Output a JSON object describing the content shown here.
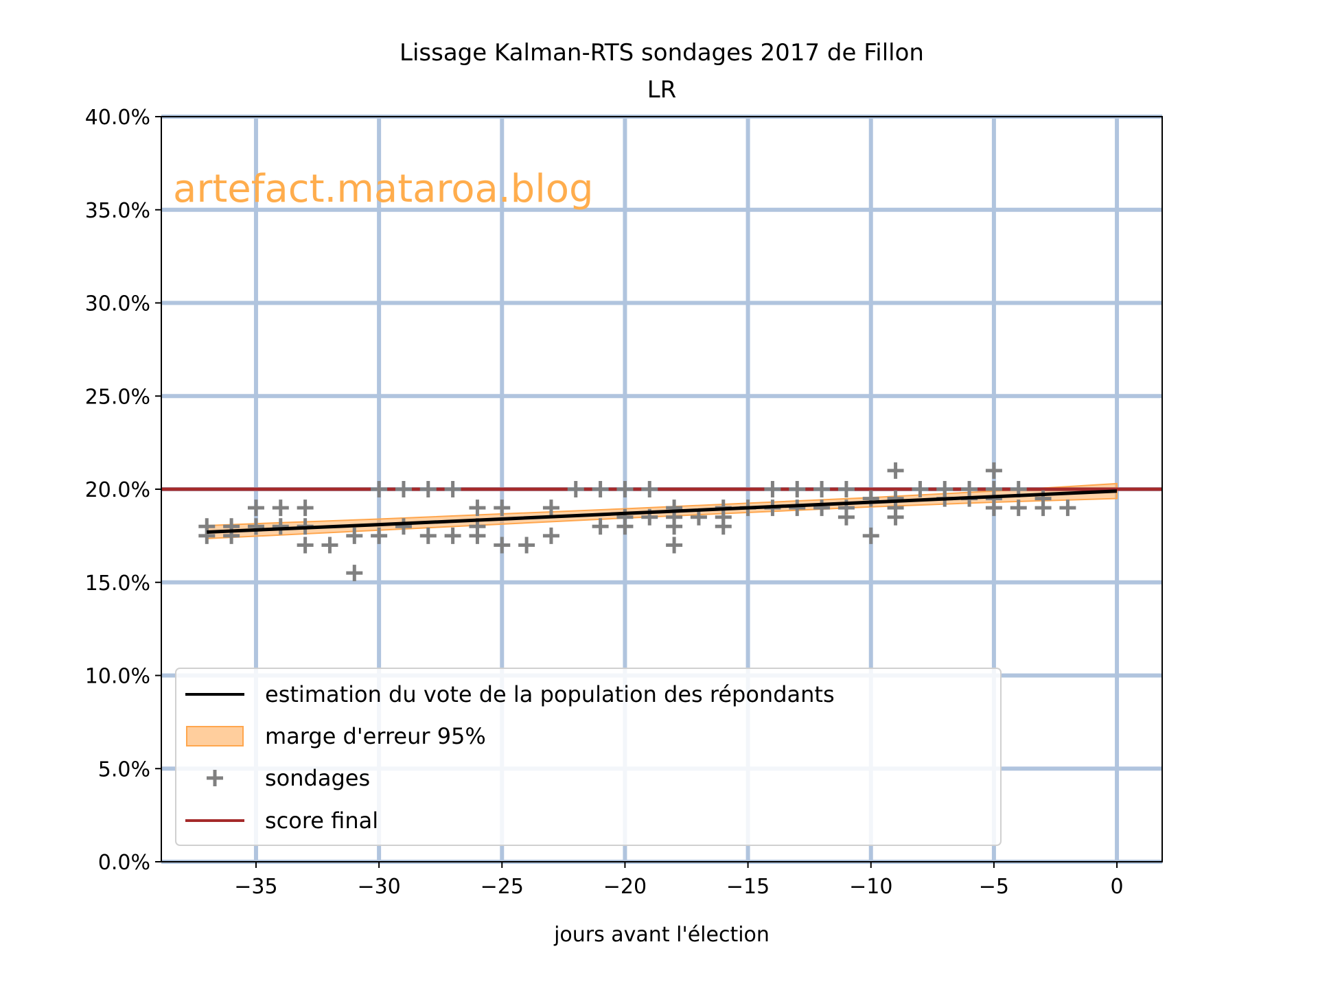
{
  "chart_data": {
    "type": "scatter",
    "title": "Lissage Kalman-RTS sondages 2017 de Fillon",
    "subtitle": "LR",
    "xlabel": "jours avant l'élection",
    "ylabel": "",
    "xlim": [
      -38.85,
      1.84
    ],
    "ylim": [
      0,
      40
    ],
    "xticks": [
      -35,
      -30,
      -25,
      -20,
      -15,
      -10,
      -5,
      0
    ],
    "xtick_labels": [
      "−35",
      "−30",
      "−25",
      "−20",
      "−15",
      "−10",
      "−5",
      "0"
    ],
    "yticks": [
      0,
      5,
      10,
      15,
      20,
      25,
      30,
      35,
      40
    ],
    "ytick_labels": [
      "0.0%",
      "5.0%",
      "10.0%",
      "15.0%",
      "20.0%",
      "25.0%",
      "30.0%",
      "35.0%",
      "40.0%"
    ],
    "grid": true,
    "grid_color": "#b0c4de",
    "watermark": "artefact.mataroa.blog",
    "watermark_color": "#ffad4d",
    "legend_position": "lower-left",
    "legend": [
      {
        "label": "estimation du vote de la population des répondants",
        "kind": "line",
        "color": "#000000"
      },
      {
        "label": "marge d'erreur 95%",
        "kind": "band",
        "color": "#ffa64d"
      },
      {
        "label": "sondages",
        "kind": "marker",
        "color": "#808080"
      },
      {
        "label": "score final",
        "kind": "line",
        "color": "#a52a2a"
      }
    ],
    "series": [
      {
        "name": "estimation du vote de la population des répondants",
        "type": "line",
        "x": [
          -37,
          -30,
          -20,
          -10,
          -5,
          0
        ],
        "y": [
          17.7,
          18.1,
          18.7,
          19.3,
          19.6,
          19.9
        ]
      },
      {
        "name": "marge d'erreur 95%",
        "type": "band",
        "x": [
          -37,
          -30,
          -20,
          -10,
          -5,
          0
        ],
        "lower": [
          17.35,
          17.8,
          18.45,
          19.05,
          19.3,
          19.5
        ],
        "upper": [
          18.05,
          18.4,
          18.95,
          19.55,
          19.9,
          20.3
        ]
      },
      {
        "name": "sondages",
        "type": "scatter",
        "points": [
          [
            -37,
            18
          ],
          [
            -37,
            17.5
          ],
          [
            -36,
            18
          ],
          [
            -36,
            17.5
          ],
          [
            -35,
            19
          ],
          [
            -35,
            18
          ],
          [
            -34,
            19
          ],
          [
            -34,
            18
          ],
          [
            -33,
            19
          ],
          [
            -33,
            18
          ],
          [
            -33,
            17
          ],
          [
            -32,
            17
          ],
          [
            -31,
            17.5
          ],
          [
            -31,
            15.5
          ],
          [
            -30,
            20
          ],
          [
            -30,
            17.5
          ],
          [
            -29,
            20
          ],
          [
            -29,
            18
          ],
          [
            -28,
            20
          ],
          [
            -28,
            17.5
          ],
          [
            -27,
            20
          ],
          [
            -27,
            17.5
          ],
          [
            -26,
            19
          ],
          [
            -26,
            18
          ],
          [
            -26,
            17.5
          ],
          [
            -25,
            19
          ],
          [
            -25,
            17
          ],
          [
            -24,
            17
          ],
          [
            -23,
            19
          ],
          [
            -23,
            17.5
          ],
          [
            -22,
            20
          ],
          [
            -21,
            20
          ],
          [
            -21,
            18
          ],
          [
            -20,
            20
          ],
          [
            -20,
            18.5
          ],
          [
            -20,
            18
          ],
          [
            -19,
            20
          ],
          [
            -19,
            18.5
          ],
          [
            -18,
            19
          ],
          [
            -18,
            18.5
          ],
          [
            -18,
            18
          ],
          [
            -18,
            17
          ],
          [
            -17,
            18.5
          ],
          [
            -16,
            19
          ],
          [
            -16,
            18.5
          ],
          [
            -16,
            18
          ],
          [
            -15,
            19
          ],
          [
            -14,
            20
          ],
          [
            -14,
            19
          ],
          [
            -13,
            20
          ],
          [
            -13,
            19
          ],
          [
            -12,
            20
          ],
          [
            -12,
            19
          ],
          [
            -11,
            20
          ],
          [
            -11,
            19
          ],
          [
            -11,
            18.5
          ],
          [
            -10,
            19.5
          ],
          [
            -10,
            17.5
          ],
          [
            -9,
            21
          ],
          [
            -9,
            19.5
          ],
          [
            -9,
            19
          ],
          [
            -9,
            18.5
          ],
          [
            -8,
            20
          ],
          [
            -7,
            20
          ],
          [
            -7,
            19.5
          ],
          [
            -6,
            20
          ],
          [
            -6,
            19.5
          ],
          [
            -5,
            21
          ],
          [
            -5,
            20
          ],
          [
            -5,
            19.5
          ],
          [
            -5,
            19
          ],
          [
            -4,
            20
          ],
          [
            -4,
            19
          ],
          [
            -3,
            19.5
          ],
          [
            -3,
            19
          ],
          [
            -2,
            19
          ]
        ]
      },
      {
        "name": "score final",
        "type": "hline",
        "y": 20
      }
    ]
  }
}
